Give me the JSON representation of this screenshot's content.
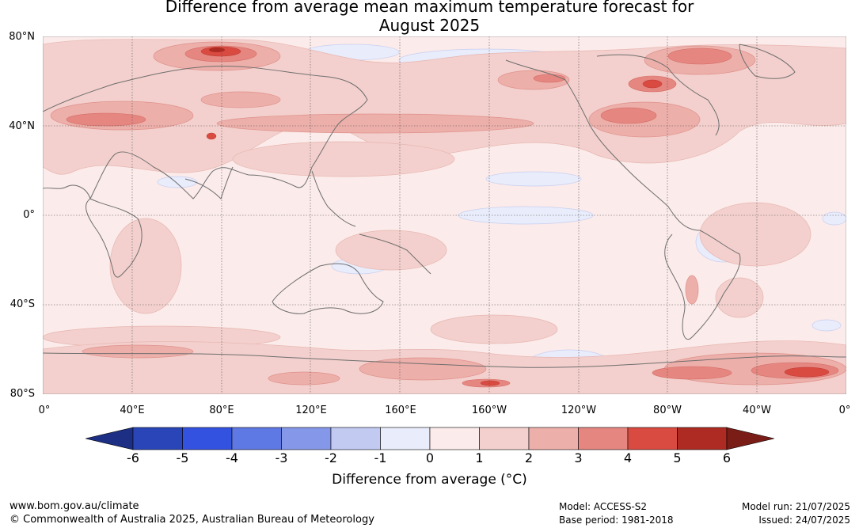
{
  "title": {
    "line1": "Difference from average mean maximum temperature forecast for",
    "line2": "August 2025"
  },
  "map": {
    "lat_labels": [
      "80°N",
      "40°N",
      "0°",
      "40°S",
      "80°S"
    ],
    "lon_labels": [
      "0°",
      "40°E",
      "80°E",
      "120°E",
      "160°E",
      "160°W",
      "120°W",
      "80°W",
      "40°W",
      "0°"
    ],
    "coastline_color": "#6e6e6e",
    "gridline_color": "#555555"
  },
  "colorbar": {
    "ticks": [
      "-6",
      "-5",
      "-4",
      "-3",
      "-2",
      "-1",
      "0",
      "1",
      "2",
      "3",
      "4",
      "5",
      "6"
    ],
    "colors": [
      "#1c2f85",
      "#2a45b8",
      "#3352e0",
      "#5e78e4",
      "#8597e8",
      "#c2caf2",
      "#e8ecfb",
      "#fbebea",
      "#f3d0cd",
      "#edafaa",
      "#e58680",
      "#d94a41",
      "#ad2b22",
      "#7a1d17"
    ],
    "label": "Difference from average (°C)"
  },
  "footer": {
    "website": "www.bom.gov.au/climate",
    "copyright": "© Commonwealth of Australia 2025, Australian Bureau of Meteorology",
    "model": "Model: ACCESS-S2",
    "base_period": "Base period: 1981-2018",
    "model_run": "Model run: 21/07/2025",
    "issued": "Issued: 24/07/2025"
  }
}
